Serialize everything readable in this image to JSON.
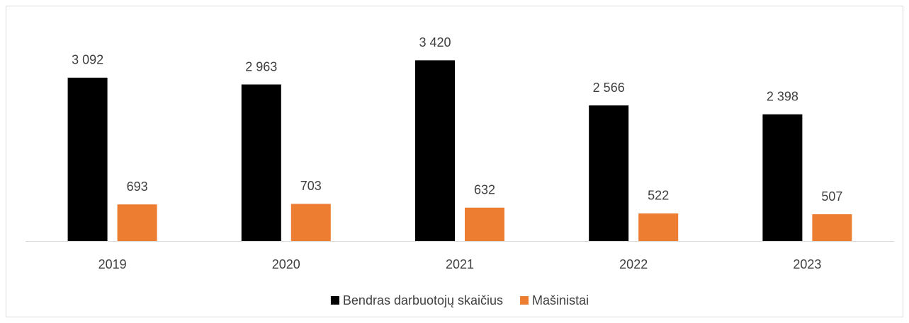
{
  "chart_data": {
    "type": "bar",
    "categories": [
      "2019",
      "2020",
      "2021",
      "2022",
      "2023"
    ],
    "series": [
      {
        "name": "Bendras darbuotojų skaičius",
        "color": "#000000",
        "values": [
          3092,
          2963,
          3420,
          2566,
          2398
        ],
        "value_labels": [
          "3 092",
          "2 963",
          "3 420",
          "2 566",
          "2 398"
        ]
      },
      {
        "name": "Mašinistai",
        "color": "#ed7d31",
        "values": [
          693,
          703,
          632,
          522,
          507
        ]
      }
    ],
    "ylim": [
      0,
      4000
    ],
    "legend": "bottom"
  }
}
